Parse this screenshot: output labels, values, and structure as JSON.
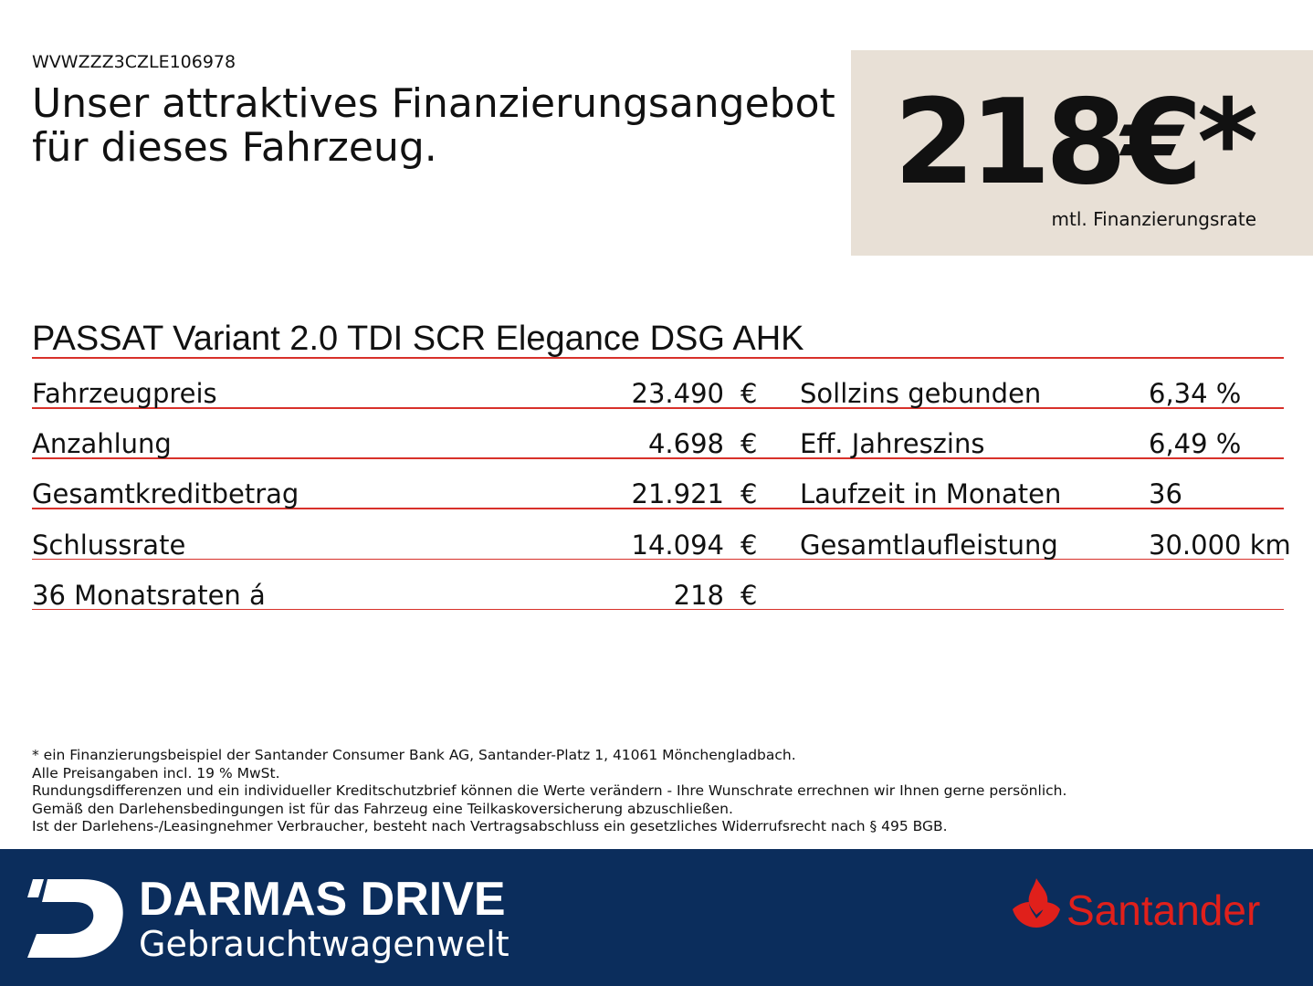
{
  "header": {
    "vin": "WVWZZZ3CZLE106978",
    "title_lines": [
      "Unser attraktives Finanzierungsangebot",
      "für dieses Fahrzeug."
    ]
  },
  "price_box": {
    "price": "218€*",
    "label": "mtl. Finanzierungsrate"
  },
  "model": "PASSAT Variant 2.0 TDI SCR Elegance DSG AHK",
  "table": {
    "left": [
      {
        "label": "Fahrzeugpreis",
        "value": "23.490",
        "unit": "€"
      },
      {
        "label": "Anzahlung",
        "value": "4.698",
        "unit": "€"
      },
      {
        "label": "Gesamtkreditbetrag",
        "value": "21.921",
        "unit": "€"
      },
      {
        "label": "Schlussrate",
        "value": "14.094",
        "unit": "€"
      },
      {
        "label": "36 Monatsraten á",
        "value": "218",
        "unit": "€"
      }
    ],
    "right": [
      {
        "label": "Sollzins gebunden",
        "value": "6,34 %"
      },
      {
        "label": "Eff. Jahreszins",
        "value": "6,49 %"
      },
      {
        "label": "Laufzeit in Monaten",
        "value": "36"
      },
      {
        "label": "Gesamtlaufleistung",
        "value": "30.000 km"
      }
    ]
  },
  "footnotes": [
    "* ein Finanzierungsbeispiel der Santander Consumer Bank AG, Santander-Platz 1, 41061 Mönchengladbach.",
    "Alle Preisangaben incl. 19 % MwSt.",
    "Rundungsdifferenzen und ein individueller Kreditschutzbrief können die Werte verändern - Ihre Wunschrate errechnen wir Ihnen gerne persönlich.",
    "Gemäß den Darlehensbedingungen ist für das Fahrzeug eine Teilkaskoversicherung abzuschließen.",
    "Ist der Darlehens-/Leasingnehmer Verbraucher, besteht nach Vertragsabschluss ein gesetzliches Widerrufsrecht nach § 495 BGB."
  ],
  "footer": {
    "brand": "DARMAS DRIVE",
    "brand_sub": "Gebrauchtwagenwelt",
    "bank": "Santander"
  }
}
